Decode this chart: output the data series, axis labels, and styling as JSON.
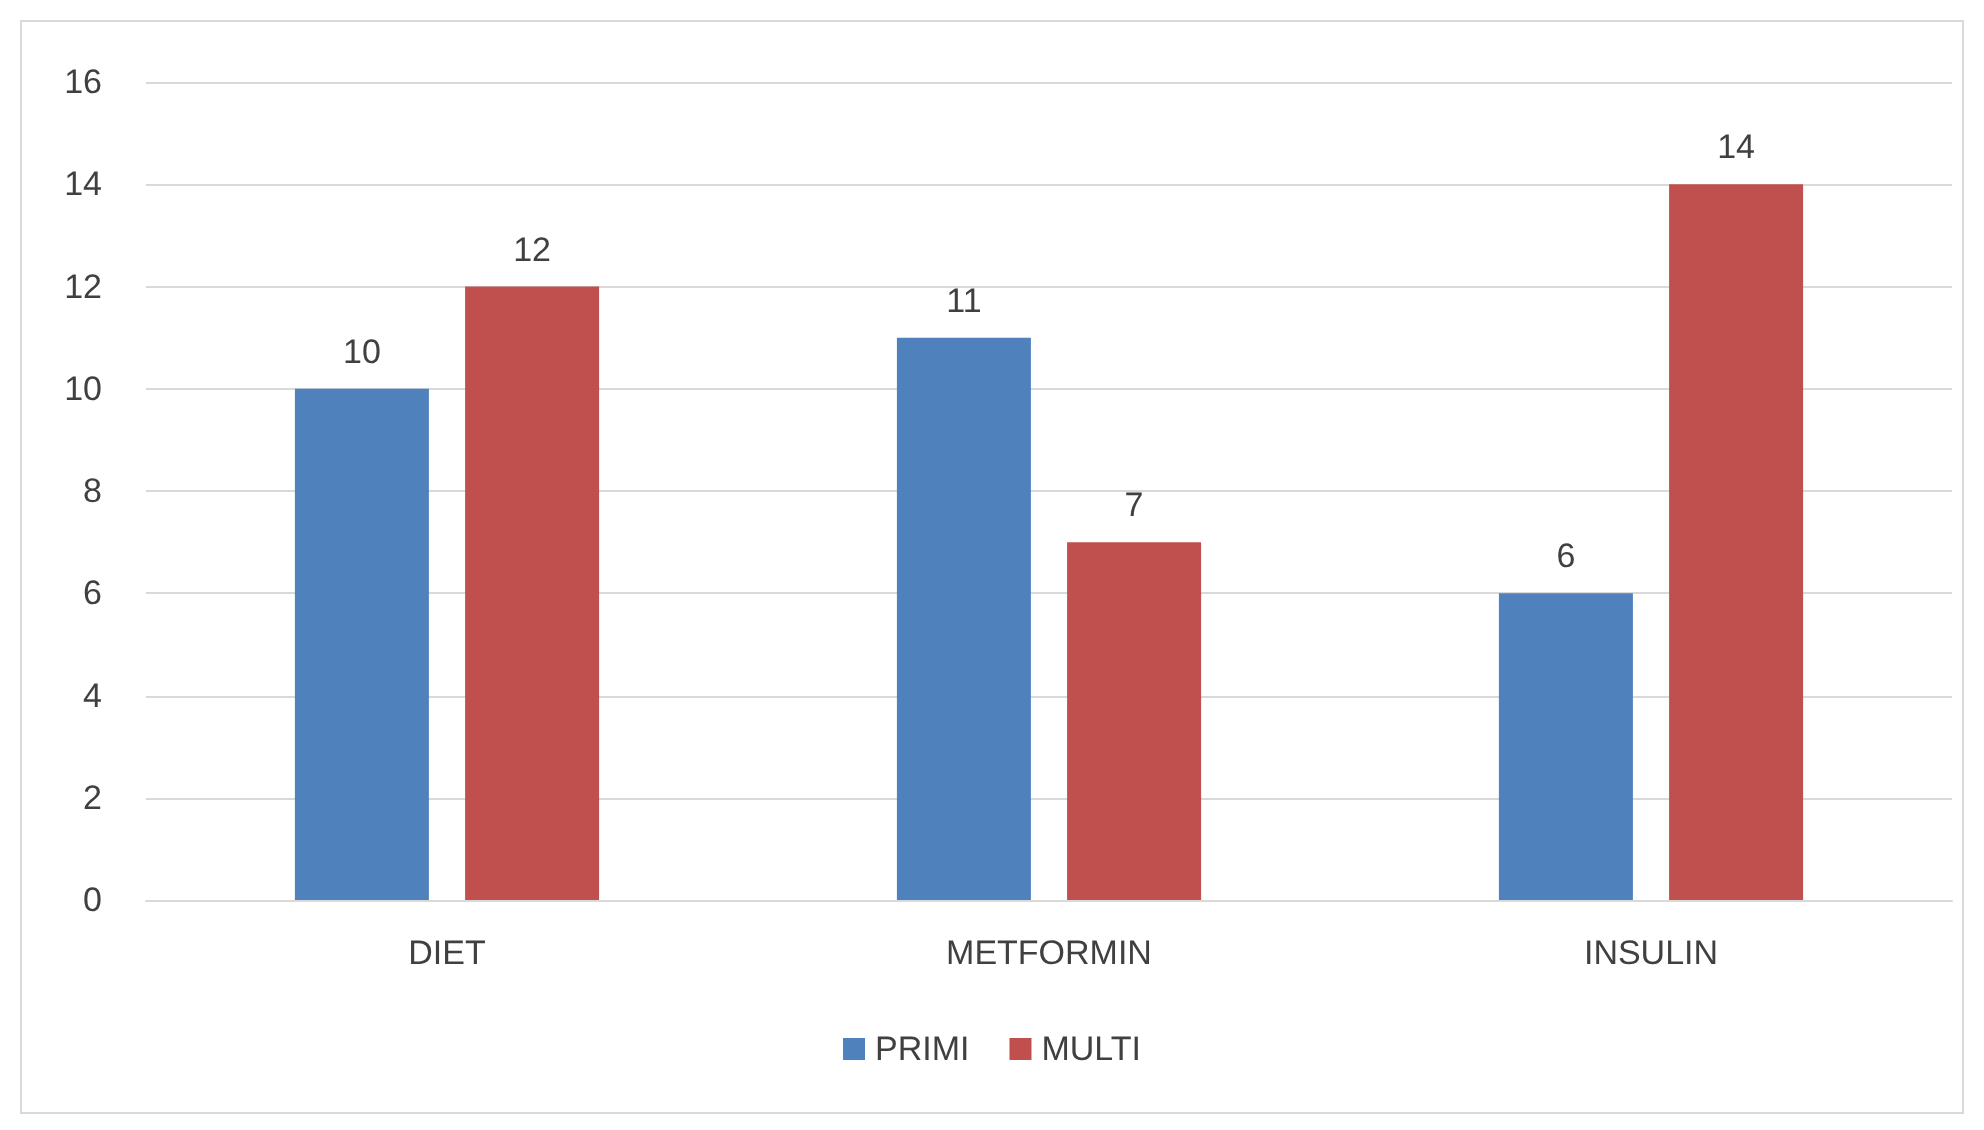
{
  "chart_data": {
    "type": "bar",
    "categories": [
      "DIET",
      "METFORMIN",
      "INSULIN"
    ],
    "series": [
      {
        "name": "PRIMI",
        "color": "#4f81bd",
        "values": [
          10,
          11,
          6
        ]
      },
      {
        "name": "MULTI",
        "color": "#c0504d",
        "values": [
          12,
          7,
          14
        ]
      }
    ],
    "ylim": [
      0,
      16
    ],
    "yticks": [
      0,
      2,
      4,
      6,
      8,
      10,
      12,
      14,
      16
    ],
    "grid": "y",
    "legend": "bottom",
    "data_labels": true
  }
}
